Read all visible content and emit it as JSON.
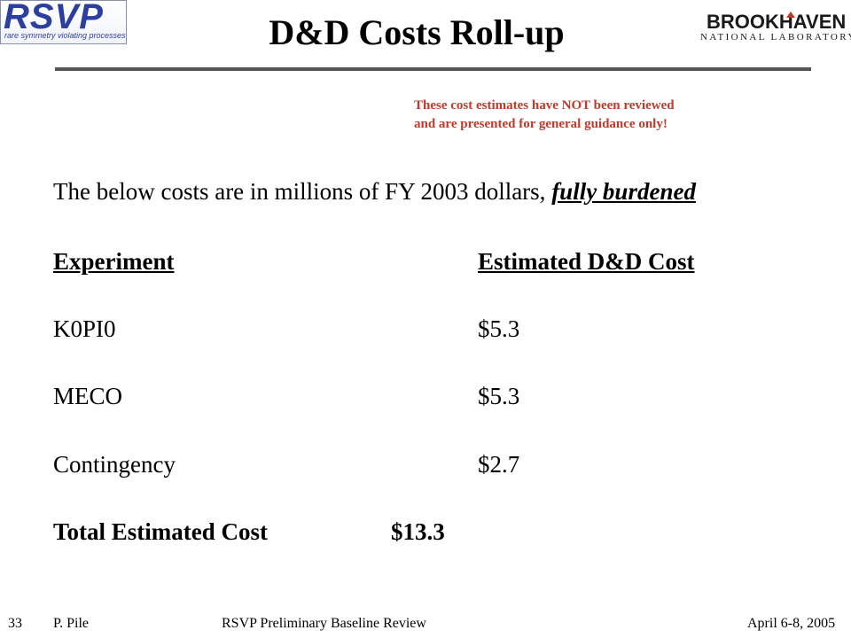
{
  "logos": {
    "rsvp": {
      "name": "RSVP",
      "tagline": "rare symmetry violating processes"
    },
    "bnl": {
      "name": "BROOKHAVEN",
      "sub": "NATIONAL LABORATORY"
    }
  },
  "title": "D&D Costs Roll-up",
  "disclaimer": {
    "line1": "These cost estimates have NOT been reviewed",
    "line2": "and are presented for general guidance only!"
  },
  "intro": {
    "text": "The below costs are in millions of FY 2003 dollars,",
    "emphasis": "fully burdened"
  },
  "table": {
    "headers": {
      "experiment": "Experiment",
      "cost": "Estimated D&D Cost"
    },
    "rows": [
      {
        "experiment": "K0PI0",
        "cost": "$5.3"
      },
      {
        "experiment": "MECO",
        "cost": "$5.3"
      },
      {
        "experiment": "Contingency",
        "cost": "$2.7"
      }
    ],
    "total": {
      "label": "Total Estimated Cost",
      "value": "$13.3"
    }
  },
  "footer": {
    "page": "33",
    "author": "P. Pile",
    "event": "RSVP Preliminary Baseline Review",
    "date": "April 6-8, 2005"
  },
  "colors": {
    "disclaimer": "#c0392b",
    "rsvp_blue": "#2d3f9e",
    "rule": "#555555"
  }
}
